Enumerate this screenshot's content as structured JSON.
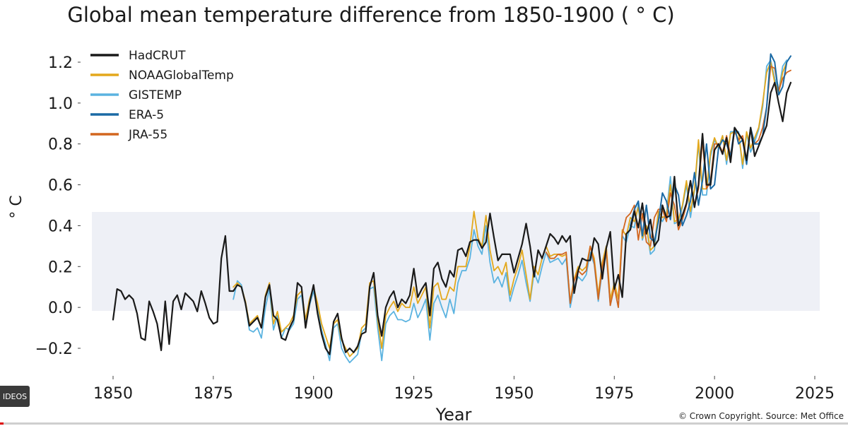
{
  "page": {
    "title": "Global mean temperature difference from 1850-1900 ( ° C)",
    "footer": "© Crown Copyright. Source: Met Office",
    "badge": "IDEOS",
    "progress": 0.004
  },
  "chart_data": {
    "type": "line",
    "title": "Global mean temperature difference from 1850-1900 ( ° C)",
    "xlabel": "Year",
    "ylabel": "° C",
    "xlim": [
      1842,
      2027
    ],
    "ylim": [
      -0.3,
      1.3
    ],
    "xticks": [
      1850,
      1875,
      1900,
      1925,
      1950,
      1975,
      2000,
      2025
    ],
    "xtick_labels": [
      "1850",
      "1875",
      "1900",
      "1925",
      "1950",
      "1975",
      "2000",
      "2025"
    ],
    "yticks": [
      -0.2,
      0.0,
      0.2,
      0.4,
      0.6,
      0.8,
      1.0,
      1.2
    ],
    "ytick_labels": [
      "−0.2",
      "0.0",
      "0.2",
      "0.4",
      "0.6",
      "0.8",
      "1.0",
      "1.2"
    ],
    "grid": false,
    "legend_position": "top-left",
    "series": [
      {
        "name": "HadCRUT",
        "color": "#1a1a1a",
        "start_year": 1850,
        "values": [
          -0.06,
          0.09,
          0.08,
          0.04,
          0.06,
          0.04,
          -0.03,
          -0.15,
          -0.16,
          0.03,
          -0.02,
          -0.08,
          -0.21,
          0.03,
          -0.18,
          0.03,
          0.06,
          -0.01,
          0.07,
          0.05,
          0.03,
          -0.02,
          0.08,
          0.02,
          -0.05,
          -0.08,
          -0.07,
          0.24,
          0.35,
          0.08,
          0.08,
          0.11,
          0.1,
          0.02,
          -0.09,
          -0.07,
          -0.05,
          -0.1,
          0.05,
          0.11,
          -0.04,
          -0.06,
          -0.15,
          -0.16,
          -0.1,
          -0.06,
          0.12,
          0.1,
          -0.1,
          0.02,
          0.11,
          -0.03,
          -0.13,
          -0.2,
          -0.23,
          -0.07,
          -0.03,
          -0.15,
          -0.22,
          -0.2,
          -0.22,
          -0.19,
          -0.13,
          -0.12,
          0.1,
          0.17,
          -0.04,
          -0.14,
          0.0,
          0.05,
          0.08,
          0.0,
          0.04,
          0.02,
          0.06,
          0.19,
          0.05,
          0.09,
          0.12,
          -0.04,
          0.19,
          0.22,
          0.14,
          0.1,
          0.18,
          0.15,
          0.28,
          0.29,
          0.25,
          0.32,
          0.33,
          0.33,
          0.29,
          0.32,
          0.46,
          0.34,
          0.23,
          0.26,
          0.26,
          0.26,
          0.17,
          0.24,
          0.31,
          0.41,
          0.3,
          0.15,
          0.28,
          0.24,
          0.3,
          0.36,
          0.34,
          0.31,
          0.35,
          0.32,
          0.35,
          0.07,
          0.18,
          0.24,
          0.23,
          0.23,
          0.34,
          0.31,
          0.14,
          0.29,
          0.37,
          0.09,
          0.16,
          0.05,
          0.36,
          0.38,
          0.47,
          0.39,
          0.51,
          0.36,
          0.43,
          0.3,
          0.33,
          0.5,
          0.44,
          0.45,
          0.64,
          0.4,
          0.45,
          0.51,
          0.62,
          0.49,
          0.6,
          0.85,
          0.6,
          0.6,
          0.77,
          0.8,
          0.75,
          0.83,
          0.71,
          0.88,
          0.85,
          0.82,
          0.72,
          0.88,
          0.74,
          0.79,
          0.84,
          0.89,
          1.05,
          1.1,
          1.0,
          0.91,
          1.05,
          1.1
        ],
        "width": 2.2
      },
      {
        "name": "NOAAGlobalTemp",
        "color": "#e3a81c",
        "start_year": 1880,
        "values": [
          0.1,
          0.12,
          0.1,
          0.03,
          -0.08,
          -0.06,
          -0.04,
          -0.1,
          0.06,
          0.12,
          -0.08,
          -0.02,
          -0.12,
          -0.1,
          -0.08,
          -0.04,
          0.06,
          0.08,
          -0.06,
          0.04,
          0.1,
          0.02,
          -0.08,
          -0.14,
          -0.2,
          -0.08,
          -0.06,
          -0.16,
          -0.2,
          -0.24,
          -0.22,
          -0.2,
          -0.1,
          -0.08,
          0.12,
          0.13,
          -0.06,
          -0.2,
          -0.04,
          0.0,
          0.03,
          -0.02,
          0.02,
          0.0,
          0.0,
          0.1,
          0.02,
          0.06,
          0.1,
          -0.1,
          0.1,
          0.12,
          0.04,
          0.04,
          0.1,
          0.08,
          0.2,
          0.2,
          0.2,
          0.3,
          0.47,
          0.34,
          0.3,
          0.45,
          0.28,
          0.18,
          0.2,
          0.16,
          0.22,
          0.06,
          0.14,
          0.2,
          0.28,
          0.16,
          0.04,
          0.2,
          0.16,
          0.24,
          0.3,
          0.25,
          0.26,
          0.26,
          0.25,
          0.26,
          0.03,
          0.14,
          0.2,
          0.18,
          0.2,
          0.3,
          0.24,
          0.06,
          0.22,
          0.3,
          0.04,
          0.12,
          0.04,
          0.38,
          0.35,
          0.44,
          0.42,
          0.49,
          0.34,
          0.4,
          0.28,
          0.3,
          0.47,
          0.44,
          0.45,
          0.6,
          0.42,
          0.43,
          0.5,
          0.62,
          0.47,
          0.58,
          0.82,
          0.58,
          0.58,
          0.76,
          0.83,
          0.78,
          0.84,
          0.72,
          0.85,
          0.86,
          0.85,
          0.7,
          0.86,
          0.78,
          0.83,
          0.88,
          1.0,
          1.15,
          1.2,
          1.1,
          1.05,
          1.15,
          1.2
        ],
        "width": 1.8
      },
      {
        "name": "GISTEMP",
        "color": "#5bb3e0",
        "start_year": 1880,
        "values": [
          0.04,
          0.13,
          0.11,
          0.02,
          -0.11,
          -0.12,
          -0.1,
          -0.15,
          0.0,
          0.09,
          -0.11,
          -0.04,
          -0.15,
          -0.1,
          -0.11,
          -0.08,
          0.04,
          0.06,
          -0.08,
          0.01,
          0.08,
          -0.01,
          -0.11,
          -0.18,
          -0.26,
          -0.1,
          -0.08,
          -0.2,
          -0.24,
          -0.27,
          -0.25,
          -0.23,
          -0.12,
          -0.1,
          0.09,
          0.1,
          -0.1,
          -0.26,
          -0.08,
          -0.04,
          -0.02,
          -0.06,
          -0.06,
          -0.07,
          -0.06,
          0.02,
          -0.05,
          -0.01,
          0.04,
          -0.16,
          0.02,
          0.06,
          0.0,
          -0.05,
          0.04,
          -0.03,
          0.12,
          0.18,
          0.18,
          0.24,
          0.38,
          0.3,
          0.26,
          0.4,
          0.22,
          0.12,
          0.15,
          0.1,
          0.17,
          0.03,
          0.1,
          0.16,
          0.23,
          0.12,
          0.03,
          0.17,
          0.12,
          0.2,
          0.27,
          0.22,
          0.23,
          0.24,
          0.21,
          0.24,
          0.0,
          0.1,
          0.15,
          0.13,
          0.16,
          0.27,
          0.21,
          0.03,
          0.18,
          0.26,
          0.01,
          0.1,
          0.0,
          0.35,
          0.32,
          0.4,
          0.39,
          0.51,
          0.33,
          0.4,
          0.26,
          0.28,
          0.45,
          0.42,
          0.46,
          0.64,
          0.41,
          0.42,
          0.49,
          0.6,
          0.44,
          0.57,
          0.8,
          0.55,
          0.55,
          0.74,
          0.82,
          0.78,
          0.84,
          0.7,
          0.86,
          0.86,
          0.86,
          0.68,
          0.85,
          0.76,
          0.81,
          0.87,
          0.98,
          1.18,
          1.21,
          1.12,
          1.06,
          1.18,
          1.21
        ],
        "width": 1.8
      },
      {
        "name": "ERA-5",
        "color": "#1b6aa5",
        "start_year": 1979,
        "values": [
          0.4,
          0.48,
          0.52,
          0.35,
          0.5,
          0.34,
          0.32,
          0.42,
          0.56,
          0.52,
          0.43,
          0.6,
          0.55,
          0.4,
          0.45,
          0.52,
          0.66,
          0.5,
          0.62,
          0.8,
          0.58,
          0.6,
          0.78,
          0.82,
          0.8,
          0.74,
          0.88,
          0.8,
          0.82,
          0.7,
          0.88,
          0.8,
          0.8,
          0.84,
          0.98,
          1.24,
          1.2,
          1.04,
          1.08,
          1.2,
          1.23
        ],
        "width": 2.0
      },
      {
        "name": "JRA-55",
        "color": "#d2661f",
        "start_year": 1958,
        "values": [
          0.27,
          0.24,
          0.24,
          0.26,
          0.26,
          0.27,
          0.02,
          0.13,
          0.18,
          0.16,
          0.18,
          0.3,
          0.22,
          0.04,
          0.2,
          0.28,
          0.01,
          0.1,
          0.0,
          0.36,
          0.44,
          0.46,
          0.5,
          0.33,
          0.46,
          0.32,
          0.3,
          0.44,
          0.48,
          0.48,
          0.42,
          0.56,
          0.5,
          0.38,
          0.43,
          0.5,
          0.62,
          0.5,
          0.58,
          0.82,
          0.58,
          0.62,
          0.8,
          0.8,
          0.76,
          0.84,
          0.74,
          0.86,
          0.82,
          0.84,
          0.72,
          0.88,
          0.8,
          0.82,
          0.88,
          0.98,
          1.18,
          1.17,
          1.06,
          1.12,
          1.15,
          1.16
        ],
        "width": 1.8
      }
    ]
  }
}
